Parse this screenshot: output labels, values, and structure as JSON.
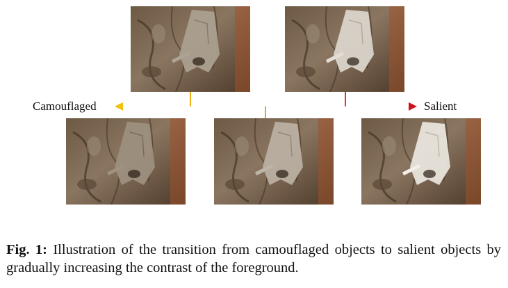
{
  "figure": {
    "left_label": "Camouflaged",
    "right_label": "Salient",
    "arrow_colors": {
      "start": "#f2c20a",
      "end": "#d0101a"
    },
    "images": [
      {
        "id": "top-left",
        "moth_brightness": 0.35
      },
      {
        "id": "top-right",
        "moth_brightness": 0.85
      },
      {
        "id": "bottom-left",
        "moth_brightness": 0.2
      },
      {
        "id": "bottom-middle",
        "moth_brightness": 0.5
      },
      {
        "id": "bottom-right",
        "moth_brightness": 1.0
      }
    ]
  },
  "caption": {
    "head": "Fig. 1:",
    "text": " Illustration of the transition from camouflaged objects to salient objects by gradually increasing the contrast of the foreground."
  }
}
